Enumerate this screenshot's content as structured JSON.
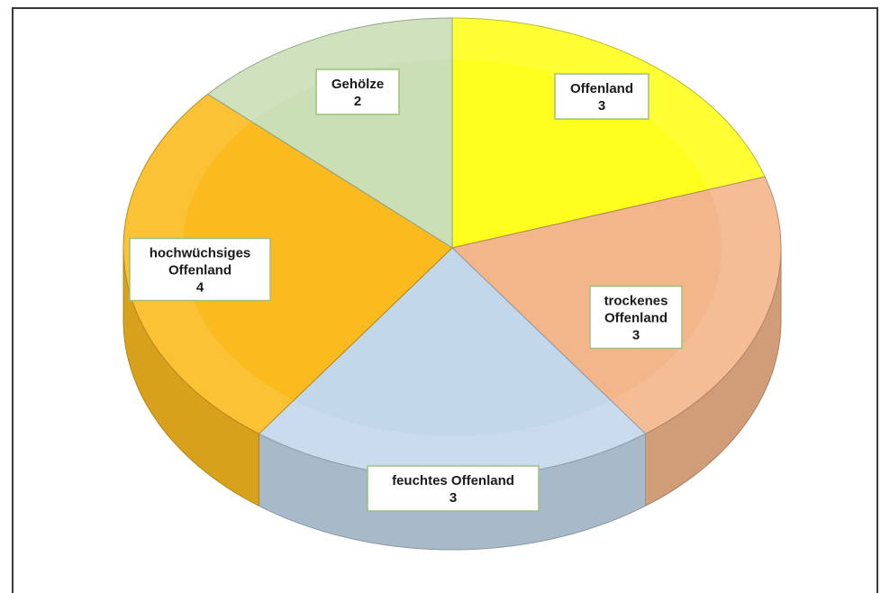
{
  "chart_data": {
    "type": "pie",
    "style": "3d",
    "slices": [
      {
        "label": "Offenland",
        "value": 3,
        "color": "#ffff1e"
      },
      {
        "label": "trockenes Offenland",
        "value": 3,
        "color": "#f3b68b"
      },
      {
        "label": "feuchtes Offenland",
        "value": 3,
        "color": "#c3d7eb"
      },
      {
        "label": "hochwüchsiges Offenland",
        "value": 4,
        "color": "#fbbb1f"
      },
      {
        "label": "Gehölze",
        "value": 2,
        "color": "#cadfb6"
      }
    ]
  }
}
